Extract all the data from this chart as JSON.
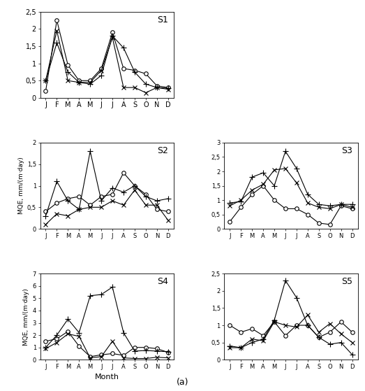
{
  "months": [
    "J",
    "F",
    "M",
    "A",
    "M",
    "J",
    "J",
    "A",
    "S",
    "O",
    "N",
    "D"
  ],
  "S1": {
    "circle": [
      0.2,
      2.25,
      0.95,
      0.5,
      0.5,
      0.85,
      1.9,
      0.85,
      0.8,
      0.7,
      0.35,
      0.3
    ],
    "plus": [
      0.5,
      1.6,
      0.75,
      0.45,
      0.4,
      0.65,
      1.8,
      1.45,
      0.75,
      0.4,
      0.3,
      0.28
    ],
    "cross": [
      0.5,
      1.95,
      0.5,
      0.45,
      0.45,
      0.8,
      1.75,
      0.3,
      0.3,
      0.15,
      0.3,
      0.25
    ],
    "ylim": [
      0,
      2.5
    ],
    "yticks": [
      0,
      0.5,
      1.0,
      1.5,
      2.0,
      2.5
    ],
    "label": "S1"
  },
  "S2": {
    "circle": [
      0.4,
      0.6,
      0.7,
      0.75,
      0.55,
      0.75,
      0.8,
      1.3,
      1.0,
      0.8,
      0.45,
      0.4
    ],
    "plus": [
      0.3,
      1.1,
      0.65,
      0.45,
      1.8,
      0.65,
      0.95,
      0.85,
      1.0,
      0.75,
      0.65,
      0.7
    ],
    "cross": [
      0.1,
      0.35,
      0.3,
      0.45,
      0.5,
      0.5,
      0.65,
      0.55,
      0.9,
      0.55,
      0.55,
      0.2
    ],
    "ylim": [
      0,
      2.0
    ],
    "yticks": [
      0,
      0.5,
      1.0,
      1.5,
      2.0
    ],
    "label": "S2"
  },
  "S3": {
    "circle": [
      0.25,
      0.75,
      1.2,
      1.5,
      1.0,
      0.7,
      0.7,
      0.5,
      0.2,
      0.15,
      0.8,
      0.7
    ],
    "plus": [
      0.9,
      0.95,
      1.8,
      1.95,
      1.5,
      2.7,
      2.1,
      1.2,
      0.85,
      0.8,
      0.85,
      0.85
    ],
    "cross": [
      0.8,
      1.0,
      1.35,
      1.55,
      2.05,
      2.1,
      1.6,
      0.9,
      0.75,
      0.7,
      0.85,
      0.75
    ],
    "ylim": [
      0,
      3.0
    ],
    "yticks": [
      0,
      0.5,
      1.0,
      1.5,
      2.0,
      2.5,
      3.0
    ],
    "label": "S3"
  },
  "S4": {
    "circle": [
      1.5,
      1.7,
      2.3,
      1.1,
      0.25,
      0.4,
      0.5,
      0.35,
      1.0,
      1.0,
      0.9,
      0.6
    ],
    "plus": [
      1.0,
      2.0,
      3.3,
      2.2,
      5.2,
      5.3,
      5.9,
      2.2,
      0.7,
      0.75,
      0.7,
      0.65
    ],
    "cross": [
      0.9,
      1.4,
      2.1,
      1.9,
      0.15,
      0.25,
      1.5,
      0.15,
      0.1,
      0.1,
      0.2,
      0.15
    ],
    "ylim": [
      0,
      7.0
    ],
    "yticks": [
      0,
      1,
      2,
      3,
      4,
      5,
      6,
      7
    ],
    "label": "S4"
  },
  "S5": {
    "circle": [
      1.0,
      0.8,
      0.9,
      0.7,
      1.1,
      0.7,
      1.0,
      1.0,
      0.65,
      0.8,
      1.1,
      0.8
    ],
    "plus": [
      0.4,
      0.35,
      0.5,
      0.6,
      1.15,
      2.3,
      1.8,
      1.0,
      0.65,
      0.45,
      0.5,
      0.15
    ],
    "cross": [
      0.35,
      0.35,
      0.6,
      0.55,
      1.1,
      1.0,
      0.95,
      1.3,
      0.8,
      1.05,
      0.75,
      0.5
    ],
    "ylim": [
      0,
      2.5
    ],
    "yticks": [
      0,
      0.5,
      1.0,
      1.5,
      2.0,
      2.5
    ],
    "label": "S5"
  },
  "ylabel": "MQE, mm/(m·day)",
  "xlabel": "Month",
  "caption": "(a)",
  "line_color": "black",
  "markersize_circle": 4,
  "markersize_plus": 6,
  "markersize_cross": 5,
  "linewidth": 0.8
}
